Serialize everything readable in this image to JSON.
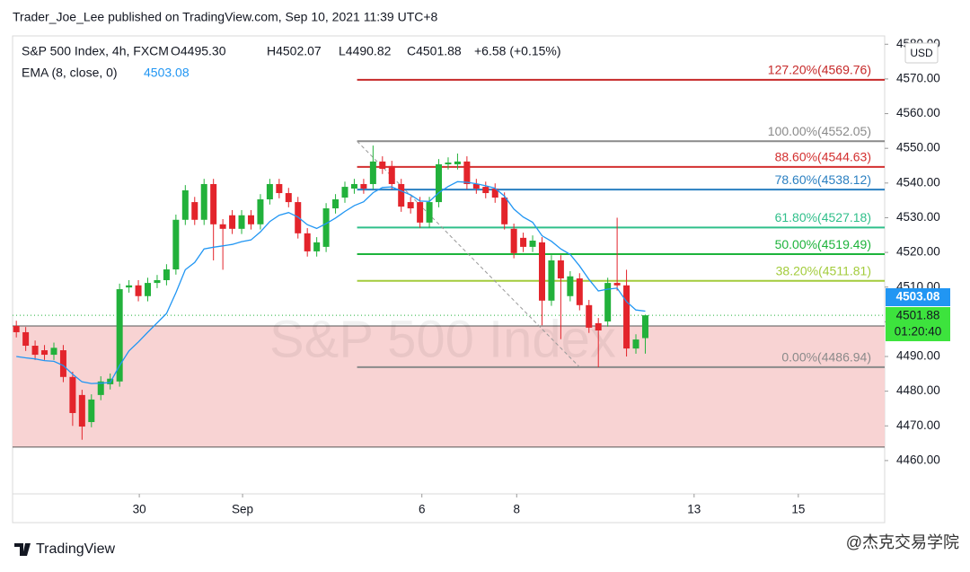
{
  "header": "Trader_Joe_Lee published on TradingView.com, Sep 10, 2021 11:39 UTC+8",
  "chart_data": {
    "type": "candlestick",
    "symbol": "S&P 500 Index, 4h, FXCM",
    "ohlc_labels": [
      "O4495.30",
      "H4502.07",
      "L4490.82",
      "C4501.88"
    ],
    "change": "+6.58 (+0.15%)",
    "watermark": "S&P 500 Index",
    "up_color": "#22b13b",
    "down_color": "#e3242b",
    "open": [
      4498.8,
      4497.0,
      4493.1,
      4491.8,
      4490.5,
      4491.8,
      4484.1,
      4478.9,
      4471.1,
      4478.9,
      4482.0,
      4482.8,
      4509.9,
      4510.5,
      4507.4,
      4511.2,
      4512.0,
      4515.1,
      4529.4,
      4534.5,
      4529.4,
      4539.7,
      4528.1,
      4530.7,
      4526.8,
      4530.7,
      4528.1,
      4535.3,
      4539.7,
      4537.1,
      4534.5,
      4525.5,
      4520.3,
      4521.6,
      4532.7,
      4535.8,
      4538.4,
      4539.7,
      4539.7,
      4546.2,
      4544.9,
      4539.7,
      4534.5,
      4534.5,
      4528.6,
      4534.5,
      4545.4,
      4545.4,
      4546.2,
      4539.7,
      4538.9,
      4538.4,
      4535.8,
      4526.8,
      4524.2,
      4521.6,
      4522.9,
      4506.1,
      4517.7,
      4507.4,
      4512.5,
      4504.8,
      4499.6,
      4500.1,
      4511.2,
      4510.5,
      4492.3,
      4495.3
    ],
    "high": [
      4500.3,
      4498.5,
      4494.6,
      4493.3,
      4494.0,
      4493.3,
      4485.6,
      4480.4,
      4479.1,
      4484.3,
      4485.1,
      4511.0,
      4512.0,
      4512.0,
      4512.7,
      4513.5,
      4516.6,
      4530.9,
      4539.4,
      4536.0,
      4541.2,
      4541.2,
      4529.6,
      4532.2,
      4532.2,
      4532.2,
      4536.8,
      4541.2,
      4541.2,
      4538.6,
      4536.0,
      4527.0,
      4524.4,
      4534.2,
      4536.8,
      4540.4,
      4541.2,
      4541.2,
      4550.8,
      4547.7,
      4546.4,
      4541.2,
      4536.0,
      4536.0,
      4536.0,
      4546.9,
      4547.4,
      4548.5,
      4547.7,
      4541.2,
      4540.4,
      4539.9,
      4537.3,
      4528.3,
      4525.7,
      4524.9,
      4524.4,
      4519.2,
      4519.2,
      4514.6,
      4514.0,
      4506.3,
      4501.1,
      4512.7,
      4530.0,
      4515.0,
      4496.4,
      4502.07
    ],
    "low": [
      4495.5,
      4491.6,
      4489.0,
      4489.0,
      4489.0,
      4482.6,
      4470.0,
      4466.0,
      4469.6,
      4477.4,
      4480.5,
      4481.3,
      4508.4,
      4505.9,
      4505.9,
      4509.7,
      4510.5,
      4513.6,
      4527.9,
      4527.9,
      4527.9,
      4517.7,
      4515.0,
      4525.3,
      4525.3,
      4526.6,
      4526.6,
      4533.8,
      4535.6,
      4533.0,
      4524.0,
      4518.8,
      4518.8,
      4520.1,
      4531.2,
      4534.3,
      4536.9,
      4536.9,
      4538.2,
      4542.6,
      4538.2,
      4531.7,
      4531.2,
      4527.1,
      4527.1,
      4533.0,
      4543.9,
      4543.9,
      4538.2,
      4536.9,
      4535.6,
      4534.3,
      4526.6,
      4518.3,
      4520.1,
      4520.1,
      4499.0,
      4504.6,
      4495.0,
      4505.9,
      4503.3,
      4496.8,
      4486.9,
      4498.6,
      4509.0,
      4490.0,
      4490.8,
      4490.82
    ],
    "close": [
      4497.0,
      4493.1,
      4490.5,
      4490.5,
      4492.5,
      4484.1,
      4473.7,
      4469.8,
      4477.6,
      4482.8,
      4483.6,
      4509.4,
      4510.5,
      4507.4,
      4511.2,
      4512.0,
      4515.1,
      4529.4,
      4537.9,
      4529.4,
      4539.7,
      4528.1,
      4526.8,
      4526.8,
      4530.7,
      4528.1,
      4535.3,
      4539.7,
      4537.1,
      4534.5,
      4525.5,
      4520.3,
      4522.9,
      4532.7,
      4535.3,
      4538.9,
      4539.7,
      4538.4,
      4546.2,
      4544.1,
      4539.7,
      4533.2,
      4532.7,
      4528.6,
      4534.5,
      4545.4,
      4545.9,
      4546.2,
      4539.7,
      4538.4,
      4537.1,
      4535.8,
      4528.1,
      4519.8,
      4521.6,
      4523.4,
      4506.1,
      4517.7,
      4512.5,
      4513.1,
      4504.8,
      4498.3,
      4497.5,
      4511.2,
      4510.5,
      4492.3,
      4494.9,
      4501.88
    ],
    "ema": {
      "name": "EMA (8, close, 0)",
      "color": "#2196f3",
      "values": [
        4490.0,
        4489.6,
        4489.3,
        4488.8,
        4488.6,
        4487.4,
        4484.9,
        4482.7,
        4482.2,
        4482.3,
        4482.5,
        4487.4,
        4491.6,
        4494.2,
        4497.0,
        4499.7,
        4502.4,
        4508.4,
        4515.0,
        4517.1,
        4521.0,
        4521.5,
        4521.9,
        4522.3,
        4523.1,
        4523.6,
        4525.9,
        4528.9,
        4530.7,
        4531.5,
        4530.2,
        4528.0,
        4526.9,
        4528.3,
        4529.9,
        4531.8,
        4533.5,
        4534.6,
        4537.2,
        4538.7,
        4538.9,
        4537.7,
        4536.6,
        4534.8,
        4534.7,
        4537.2,
        4539.0,
        4540.4,
        4540.2,
        4539.8,
        4539.2,
        4538.5,
        4536.2,
        4532.5,
        4530.2,
        4528.7,
        4524.8,
        4523.2,
        4521.0,
        4519.4,
        4516.1,
        4512.2,
        4508.9,
        4509.4,
        4509.7,
        4505.8,
        4503.4,
        4503.08
      ]
    },
    "fib_levels": [
      {
        "label": "127.20%(4569.76)",
        "value": 4569.76,
        "color": "#c62828"
      },
      {
        "label": "100.00%(4552.05)",
        "value": 4552.05,
        "color": "#8a8a8a"
      },
      {
        "label": "88.60%(4544.63)",
        "value": 4544.63,
        "color": "#d32f2f"
      },
      {
        "label": "78.60%(4538.12)",
        "value": 4538.12,
        "color": "#2a7fc1"
      },
      {
        "label": "61.80%(4527.18)",
        "value": 4527.18,
        "color": "#2fbf8a"
      },
      {
        "label": "50.00%(4519.49)",
        "value": 4519.49,
        "color": "#1db33b"
      },
      {
        "label": "38.20%(4511.81)",
        "value": 4511.81,
        "color": "#a3cc3c"
      },
      {
        "label": "0.00%(4486.94)",
        "value": 4486.94,
        "color": "#8a8a8a"
      }
    ],
    "trendline": {
      "x": [
        36.3,
        60.0
      ],
      "y": [
        4552.05,
        4486.94
      ]
    },
    "zone": [
      4463.9,
      4498.8
    ],
    "zone_color": "#f8d3d3",
    "countdown": "01:20:40",
    "currency": "USD",
    "xlim": [
      -0.4,
      92.5
    ],
    "ylim": [
      4450.4,
      4582.4
    ],
    "xticks": [
      {
        "value": 13.1,
        "label": "30"
      },
      {
        "value": 24.1,
        "label": "Sep"
      },
      {
        "value": 43.2,
        "label": "6"
      },
      {
        "value": 53.3,
        "label": "8"
      },
      {
        "value": 72.2,
        "label": "13"
      },
      {
        "value": 83.3,
        "label": "15"
      }
    ],
    "yticks": [
      {
        "value": 4460,
        "label": "4460.00"
      },
      {
        "value": 4470,
        "label": "4470.00"
      },
      {
        "value": 4480,
        "label": "4480.00"
      },
      {
        "value": 4490,
        "label": "4490.00"
      },
      {
        "value": 4500,
        "label": "4500.00"
      },
      {
        "value": 4510,
        "label": "4510.00"
      },
      {
        "value": 4520,
        "label": "4520.00"
      },
      {
        "value": 4530,
        "label": "4530.00"
      },
      {
        "value": 4540,
        "label": "4540.00"
      },
      {
        "value": 4550,
        "label": "4550.00"
      },
      {
        "value": 4560,
        "label": "4560.00"
      },
      {
        "value": 4570,
        "label": "4570.00"
      },
      {
        "value": 4580,
        "label": "4580.00"
      }
    ],
    "grid": false
  },
  "footer": {
    "logo": "TradingView",
    "watermark": "@杰克交易学院"
  }
}
